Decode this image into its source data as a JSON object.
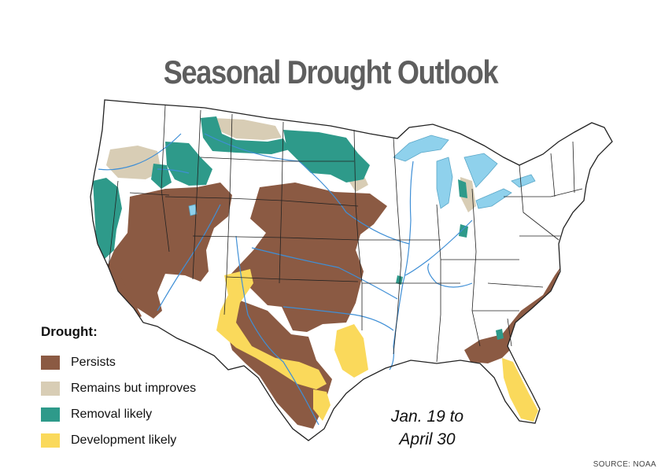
{
  "title": "Seasonal Drought Outlook",
  "legend": {
    "heading": "Drought:",
    "items": [
      {
        "label": "Persists",
        "color": "#8b5a43"
      },
      {
        "label": "Remains but improves",
        "color": "#d8cdb5"
      },
      {
        "label": "Removal likely",
        "color": "#2e9a8a"
      },
      {
        "label": "Development likely",
        "color": "#fad95b"
      }
    ]
  },
  "period": {
    "line1": "Jan. 19 to",
    "line2": "April 30"
  },
  "source": "SOURCE: NOAA",
  "colors": {
    "title": "#5e5e5e",
    "water": "#8fd1ec",
    "rivers": "#3f8fd6",
    "state_borders": "#222222",
    "land": "#ffffff"
  }
}
